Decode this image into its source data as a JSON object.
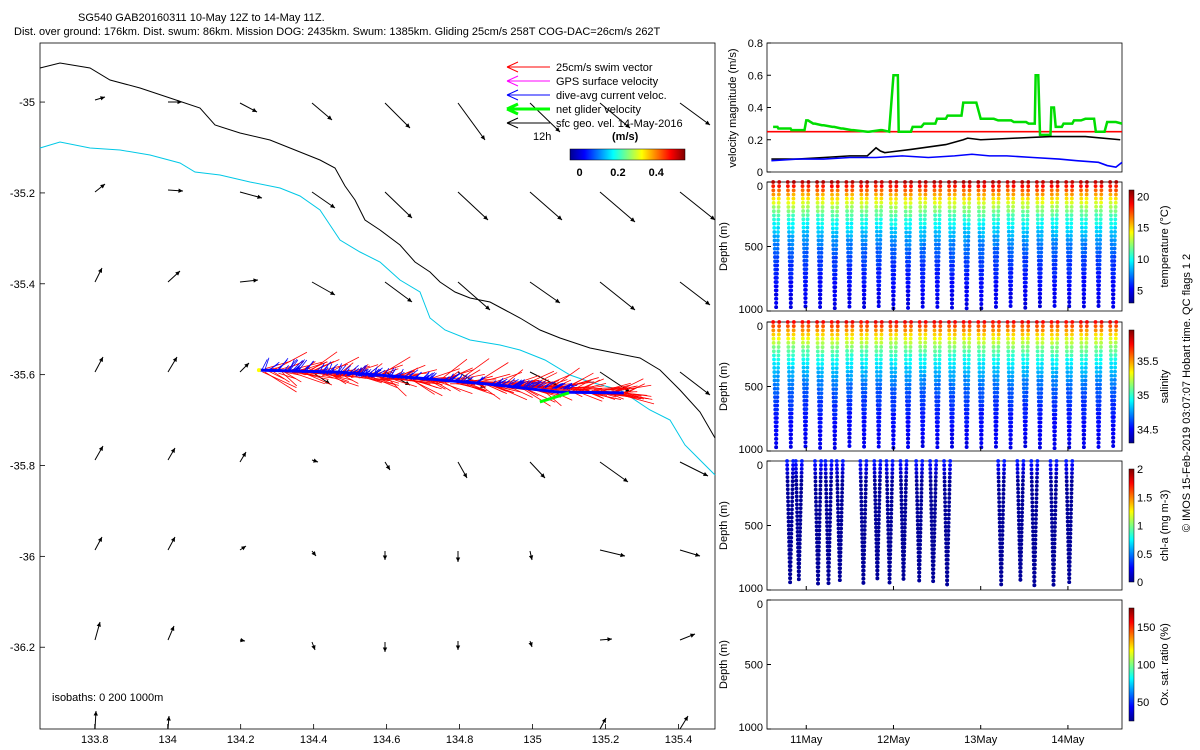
{
  "header": {
    "line1": "SG540 GAB20160311 10-May 12Z to 14-May 11Z.",
    "line2": "Dist. over ground: 176km. Dist. swum: 86km. Mission DOG: 2435km. Swum: 1385km. Gliding 25cm/s 258T COG-DAC=26cm/s 262T"
  },
  "side_text": "© IMOS 15-Feb-2019 03:07:07 Hobart time. QC flags 1  2",
  "map": {
    "legend": [
      {
        "label": "25cm/s swim vector",
        "color": "#ff0000"
      },
      {
        "label": "GPS surface velocity",
        "color": "#ff00ff"
      },
      {
        "label": "dive-avg current veloc.",
        "color": "#0000ff"
      },
      {
        "label": "net glider velocity",
        "color": "#00ff00"
      },
      {
        "label": "sfc geo. vel. 14-May-2016",
        "color": "#000000"
      }
    ],
    "marker_12h": "12h",
    "colorbar": {
      "unit": "(m/s)",
      "ticks": [
        "0",
        "0.2",
        "0.4"
      ],
      "min": -0.05,
      "max": 0.55
    },
    "isobath_label": "isobaths: 0   200  1000m",
    "xlim": [
      133.65,
      135.5
    ],
    "ylim": [
      -36.38,
      -34.87
    ],
    "xticks": [
      "133.8",
      "134",
      "134.2",
      "134.4",
      "134.6",
      "134.8",
      "135",
      "135.2",
      "135.4"
    ],
    "yticks": [
      "-35",
      "-35.2",
      "-35.4",
      "-35.6",
      "-35.8",
      "-36",
      "-36.2"
    ],
    "xtick_values": [
      133.8,
      134,
      134.2,
      134.4,
      134.6,
      134.8,
      135,
      135.2,
      135.4
    ],
    "ytick_values": [
      -35,
      -35.2,
      -35.4,
      -35.6,
      -35.8,
      -36,
      -36.2
    ]
  },
  "timeseries": {
    "velocity_ylabel": "velocity magnitude (m/s)",
    "velocity_yticks": [
      "0",
      "0.2",
      "0.4",
      "0.6",
      "0.8"
    ],
    "velocity_ytick_values": [
      0,
      0.2,
      0.4,
      0.6,
      0.8
    ],
    "depth_ylabel": "Depth (m)",
    "depth_yticks": [
      "0",
      "500",
      "1000"
    ],
    "depth_ytick_values": [
      0,
      500,
      1000
    ],
    "xticks": [
      "11May",
      "12May",
      "13May",
      "14May"
    ],
    "xtick_values": [
      1,
      2,
      3,
      4
    ],
    "panels": [
      {
        "name": "temperature",
        "colorbar_label": "temperature (°C)",
        "ticks": [
          "5",
          "10",
          "15",
          "20"
        ],
        "tick_values": [
          5,
          10,
          15,
          20
        ],
        "min": 3,
        "max": 21
      },
      {
        "name": "salinity",
        "colorbar_label": "salinity",
        "ticks": [
          "34.5",
          "35",
          "35.5"
        ],
        "tick_values": [
          34.5,
          35,
          35.5
        ],
        "min": 34.3,
        "max": 35.95
      },
      {
        "name": "chla",
        "colorbar_label": "chl-a (mg m-3)",
        "ticks": [
          "0",
          "0.5",
          "1",
          "1.5",
          "2"
        ],
        "tick_values": [
          0,
          0.5,
          1,
          1.5,
          2
        ],
        "min": 0,
        "max": 2
      },
      {
        "name": "oxsat",
        "colorbar_label": "Ox. sat. ratio (%)",
        "ticks": [
          "50",
          "100",
          "150"
        ],
        "tick_values": [
          50,
          100,
          150
        ],
        "min": 25,
        "max": 175
      }
    ]
  },
  "chart_data": [
    {
      "type": "scatter",
      "xlabel": "",
      "ylabel": "",
      "xlim": [
        133.65,
        135.5
      ],
      "ylim": [
        -36.38,
        -34.87
      ],
      "vectors_note": "sfc geo. vel. 14-May-2016",
      "glider_track": {
        "start": [
          134.25,
          -35.59
        ],
        "end": [
          135.25,
          -35.64
        ]
      }
    },
    {
      "type": "line",
      "ylabel": "velocity magnitude (m/s)",
      "ylim": [
        0,
        0.8
      ],
      "xlim": [
        0.55,
        4.62
      ],
      "series": [
        {
          "color": "#ff0000",
          "x": [
            0.55,
            4.62
          ],
          "values": [
            0.25,
            0.25
          ]
        },
        {
          "color": "#00dd00",
          "x": [
            0.62,
            0.67,
            0.68,
            0.82,
            0.83,
            0.98,
            1.0,
            1.02,
            1.08,
            1.1,
            1.18,
            1.2,
            1.3,
            1.32,
            1.4,
            1.42,
            1.52,
            1.54,
            1.7,
            1.72,
            1.85,
            1.87,
            1.95,
            2.0,
            2.05,
            2.06,
            2.2,
            2.22,
            2.32,
            2.35,
            2.48,
            2.5,
            2.6,
            2.62,
            2.78,
            2.8,
            2.95,
            3.0,
            3.15,
            3.2,
            3.35,
            3.38,
            3.52,
            3.55,
            3.62,
            3.63,
            3.66,
            3.68,
            3.8,
            3.81,
            3.84,
            3.86,
            3.93,
            3.95,
            4.05,
            4.07,
            4.15,
            4.2,
            4.3,
            4.32,
            4.42,
            4.45,
            4.55,
            4.62
          ],
          "values": [
            0.28,
            0.28,
            0.27,
            0.27,
            0.26,
            0.26,
            0.32,
            0.32,
            0.3,
            0.3,
            0.29,
            0.29,
            0.28,
            0.28,
            0.27,
            0.27,
            0.26,
            0.26,
            0.25,
            0.25,
            0.26,
            0.26,
            0.25,
            0.6,
            0.6,
            0.25,
            0.25,
            0.28,
            0.28,
            0.3,
            0.3,
            0.33,
            0.33,
            0.35,
            0.35,
            0.43,
            0.43,
            0.33,
            0.33,
            0.32,
            0.32,
            0.31,
            0.31,
            0.3,
            0.3,
            0.6,
            0.6,
            0.23,
            0.23,
            0.4,
            0.4,
            0.28,
            0.28,
            0.3,
            0.3,
            0.32,
            0.32,
            0.33,
            0.33,
            0.25,
            0.25,
            0.31,
            0.31,
            0.3
          ]
        },
        {
          "color": "#000000",
          "x": [
            0.6,
            0.9,
            1.2,
            1.5,
            1.7,
            1.8,
            1.85,
            1.9,
            2.2,
            2.6,
            2.8,
            2.85,
            3.0,
            3.4,
            3.8,
            4.2,
            4.6
          ],
          "values": [
            0.08,
            0.08,
            0.09,
            0.1,
            0.1,
            0.15,
            0.13,
            0.12,
            0.14,
            0.17,
            0.2,
            0.21,
            0.2,
            0.21,
            0.22,
            0.22,
            0.2
          ]
        },
        {
          "color": "#0000ff",
          "x": [
            0.6,
            0.9,
            1.2,
            1.5,
            1.8,
            2.1,
            2.4,
            2.7,
            2.9,
            3.1,
            3.3,
            3.6,
            3.9,
            4.1,
            4.35,
            4.45,
            4.55,
            4.62
          ],
          "values": [
            0.07,
            0.08,
            0.08,
            0.09,
            0.09,
            0.1,
            0.09,
            0.1,
            0.11,
            0.1,
            0.1,
            0.09,
            0.08,
            0.07,
            0.06,
            0.04,
            0.03,
            0.06
          ]
        }
      ]
    },
    {
      "type": "scatter",
      "name": "temperature profiles",
      "ylabel": "Depth (m)",
      "ylim": [
        1000,
        0
      ],
      "colorbar": "temperature (°C)",
      "cmin": 3,
      "cmax": 21,
      "surface_value": 20,
      "deep_value": 4,
      "dives": 24
    },
    {
      "type": "scatter",
      "name": "salinity profiles",
      "ylabel": "Depth (m)",
      "ylim": [
        1000,
        0
      ],
      "colorbar": "salinity",
      "cmin": 34.3,
      "cmax": 35.95,
      "surface_value": 35.75,
      "deep_value": 34.4,
      "dives": 24
    },
    {
      "type": "scatter",
      "name": "chl-a profiles",
      "ylabel": "Depth (m)",
      "ylim": [
        1000,
        0
      ],
      "colorbar": "chl-a (mg m-3)",
      "cmin": 0,
      "cmax": 2,
      "surface_value": 0.3,
      "deep_value": 0.05,
      "dives": 17
    },
    {
      "type": "scatter",
      "name": "oxygen saturation",
      "ylabel": "Depth (m)",
      "ylim": [
        1000,
        0
      ],
      "colorbar": "Ox. sat. ratio (%)",
      "cmin": 25,
      "cmax": 175,
      "dives": 0
    }
  ]
}
